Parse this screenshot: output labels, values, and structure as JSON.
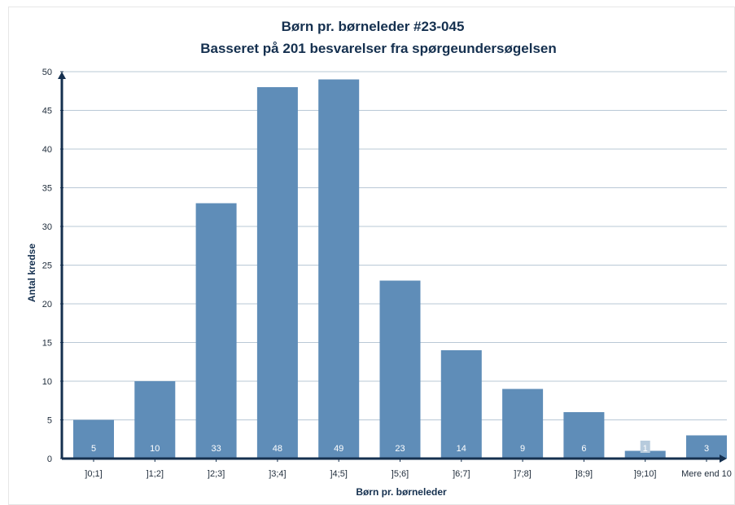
{
  "chart_data": {
    "type": "bar",
    "title": "Børn pr. børneleder #23-045",
    "subtitle": "Basseret på 201 besvarelser fra spørgeundersøgelsen",
    "xlabel": "Børn pr. børneleder",
    "ylabel": "Antal kredse",
    "categories": [
      "]0;1]",
      "]1;2]",
      "]2;3]",
      "]3;4]",
      "]4;5]",
      "]5;6]",
      "]6;7]",
      "]7;8]",
      "]8;9]",
      "]9;10]",
      "Mere end 10"
    ],
    "values": [
      5,
      10,
      33,
      48,
      49,
      23,
      14,
      9,
      6,
      1,
      3
    ],
    "ylim": [
      0,
      50
    ],
    "yticks": [
      0,
      5,
      10,
      15,
      20,
      25,
      30,
      35,
      40,
      45,
      50
    ],
    "grid": true,
    "data_labels": true,
    "colors": {
      "bar": "#5f8db8",
      "grid": "#b9c8d6",
      "axis": "#15304f",
      "label_box": "#b7cbdd"
    }
  }
}
